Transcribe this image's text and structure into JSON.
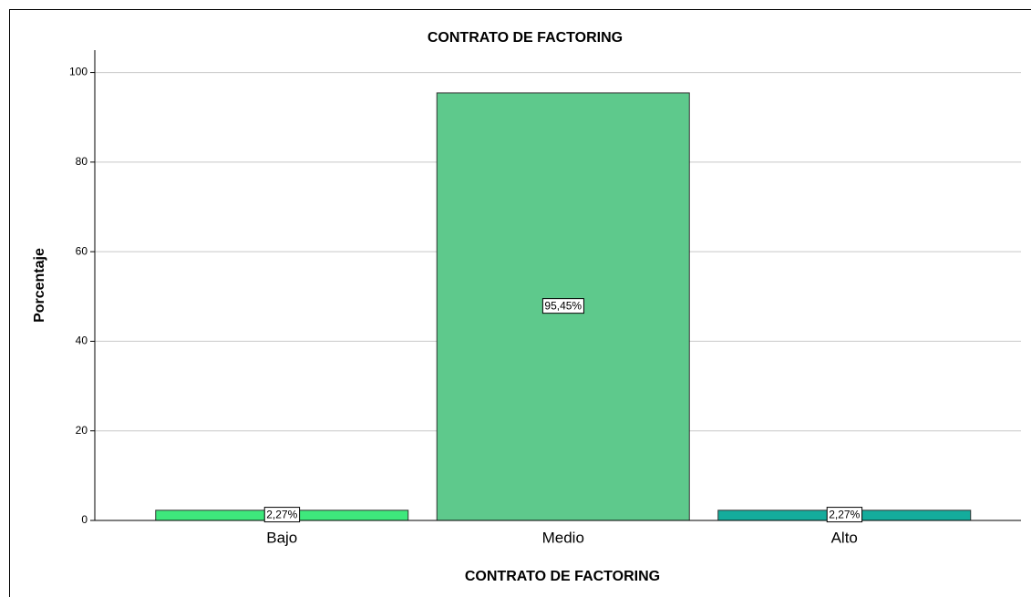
{
  "chart_data": {
    "type": "bar",
    "title": "CONTRATO DE FACTORING",
    "x_label": "CONTRATO DE FACTORING",
    "y_label": "Porcentaje",
    "categories": [
      "Bajo",
      "Medio",
      "Alto"
    ],
    "values": [
      2.27,
      95.45,
      2.27
    ],
    "value_labels": [
      "2,27%",
      "95,45%",
      "2,27%"
    ],
    "colors": [
      "#3ee87c",
      "#5ec98c",
      "#14ac9c"
    ],
    "ylim": [
      0,
      105
    ],
    "yticks": [
      0,
      20,
      40,
      60,
      80,
      100
    ],
    "grid": true
  }
}
